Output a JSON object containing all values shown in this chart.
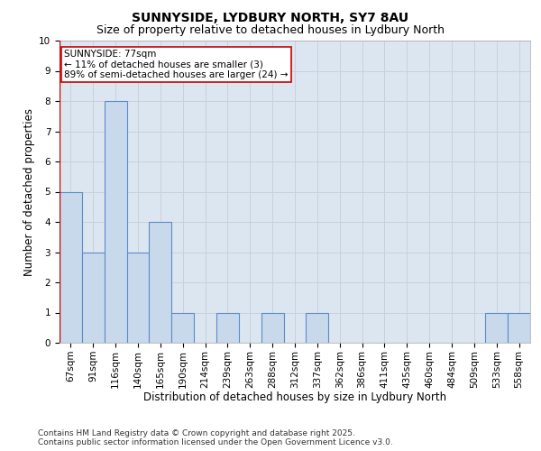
{
  "title": "SUNNYSIDE, LYDBURY NORTH, SY7 8AU",
  "subtitle": "Size of property relative to detached houses in Lydbury North",
  "xlabel": "Distribution of detached houses by size in Lydbury North",
  "ylabel": "Number of detached properties",
  "categories": [
    "67sqm",
    "91sqm",
    "116sqm",
    "140sqm",
    "165sqm",
    "190sqm",
    "214sqm",
    "239sqm",
    "263sqm",
    "288sqm",
    "312sqm",
    "337sqm",
    "362sqm",
    "386sqm",
    "411sqm",
    "435sqm",
    "460sqm",
    "484sqm",
    "509sqm",
    "533sqm",
    "558sqm"
  ],
  "values": [
    5,
    3,
    8,
    3,
    4,
    1,
    0,
    1,
    0,
    1,
    0,
    1,
    0,
    0,
    0,
    0,
    0,
    0,
    0,
    1,
    1
  ],
  "bar_color": "#c9d9ec",
  "bar_edge_color": "#5b8cc8",
  "annotation_text": "SUNNYSIDE: 77sqm\n← 11% of detached houses are smaller (3)\n89% of semi-detached houses are larger (24) →",
  "annotation_box_color": "#ffffff",
  "annotation_box_edge_color": "#cc0000",
  "ylim": [
    0,
    10
  ],
  "yticks": [
    0,
    1,
    2,
    3,
    4,
    5,
    6,
    7,
    8,
    9,
    10
  ],
  "grid_color": "#c8d0dc",
  "bg_color": "#dce6f0",
  "footer_text": "Contains HM Land Registry data © Crown copyright and database right 2025.\nContains public sector information licensed under the Open Government Licence v3.0.",
  "title_fontsize": 10,
  "subtitle_fontsize": 9,
  "xlabel_fontsize": 8.5,
  "ylabel_fontsize": 8.5,
  "annotation_fontsize": 7.5,
  "tick_fontsize": 7.5,
  "footer_fontsize": 6.5,
  "red_line_x": 0
}
